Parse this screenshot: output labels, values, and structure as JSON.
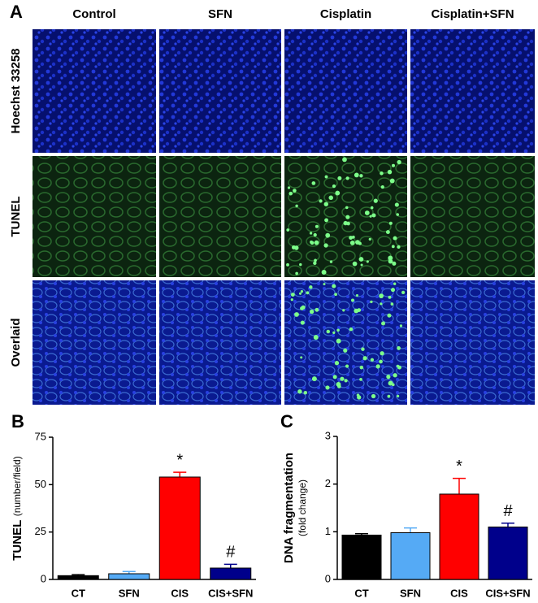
{
  "panel_a": {
    "label": "A",
    "columns": [
      "Control",
      "SFN",
      "Cisplatin",
      "Cisplatin+SFN"
    ],
    "rows": [
      "Hoechst 33258",
      "TUNEL",
      "Overlaid"
    ]
  },
  "chart_data": [
    {
      "type": "bar",
      "panel_label": "B",
      "ylabel": "TUNEL",
      "ylabel_unit": "(number/field)",
      "categories": [
        "CT",
        "SFN",
        "CIS",
        "CIS+SFN"
      ],
      "values": [
        2,
        3,
        54,
        6
      ],
      "errors": [
        0.5,
        1.2,
        2.5,
        2
      ],
      "colors": [
        "#000000",
        "#55aaf5",
        "#ff0000",
        "#00008b"
      ],
      "value_markers": [
        null,
        null,
        "*",
        "#"
      ],
      "ylim": [
        0,
        75
      ],
      "yticks": [
        0,
        25,
        50,
        75
      ]
    },
    {
      "type": "bar",
      "panel_label": "C",
      "ylabel": "DNA fragmentation",
      "ylabel_unit": "(fold change)",
      "categories": [
        "CT",
        "SFN",
        "CIS",
        "CIS+SFN"
      ],
      "values": [
        0.93,
        0.98,
        1.79,
        1.1
      ],
      "errors": [
        0.03,
        0.1,
        0.33,
        0.08
      ],
      "colors": [
        "#000000",
        "#55aaf5",
        "#ff0000",
        "#00008b"
      ],
      "value_markers": [
        null,
        null,
        "*",
        "#"
      ],
      "ylim": [
        0,
        3
      ],
      "yticks": [
        0,
        1,
        2,
        3
      ]
    }
  ]
}
